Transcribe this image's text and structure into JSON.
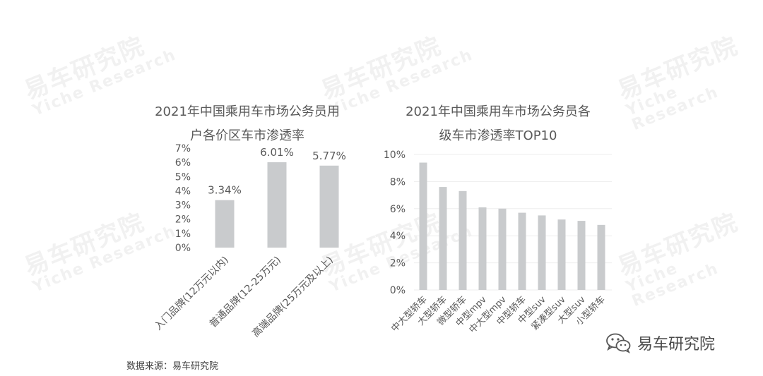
{
  "watermark": {
    "cn": "易车研究院",
    "en": "Yiche Research"
  },
  "source": "数据来源：易车研究院",
  "brand": {
    "label": "易车研究院",
    "icon": "wechat-icon"
  },
  "colors": {
    "bar": "#c9cbcd",
    "grid": "#ededed",
    "text": "#595959"
  },
  "chart_data": [
    {
      "type": "bar",
      "title_lines": [
        "2021年中国乘用车市场公务员用",
        "户各价区车市渗透率"
      ],
      "categories": [
        "入门品牌(12万元以内)",
        "普通品牌(12-25万元)",
        "高端品牌(25万元及以上)"
      ],
      "values": [
        3.34,
        6.01,
        5.77
      ],
      "data_labels": [
        "3.34%",
        "6.01%",
        "5.77%"
      ],
      "ylim": [
        0,
        7
      ],
      "yticks": [
        "0%",
        "1%",
        "2%",
        "3%",
        "4%",
        "5%",
        "6%",
        "7%"
      ],
      "grid": false,
      "xlabel": "",
      "ylabel": ""
    },
    {
      "type": "bar",
      "title_lines": [
        "2021年中国乘用车市场公务员各",
        "级车市渗透率TOP10"
      ],
      "categories": [
        "中大型轿车",
        "大型轿车",
        "微型轿车",
        "中型mpv",
        "中大型mpv",
        "中型轿车",
        "中型suv",
        "紧凑型suv",
        "大型suv",
        "小型轿车"
      ],
      "values": [
        9.4,
        7.6,
        7.3,
        6.1,
        6.0,
        5.7,
        5.5,
        5.2,
        5.1,
        4.8
      ],
      "ylim": [
        0,
        10
      ],
      "yticks": [
        "0%",
        "2%",
        "4%",
        "6%",
        "8%",
        "10%"
      ],
      "grid": true,
      "xlabel": "",
      "ylabel": ""
    }
  ]
}
